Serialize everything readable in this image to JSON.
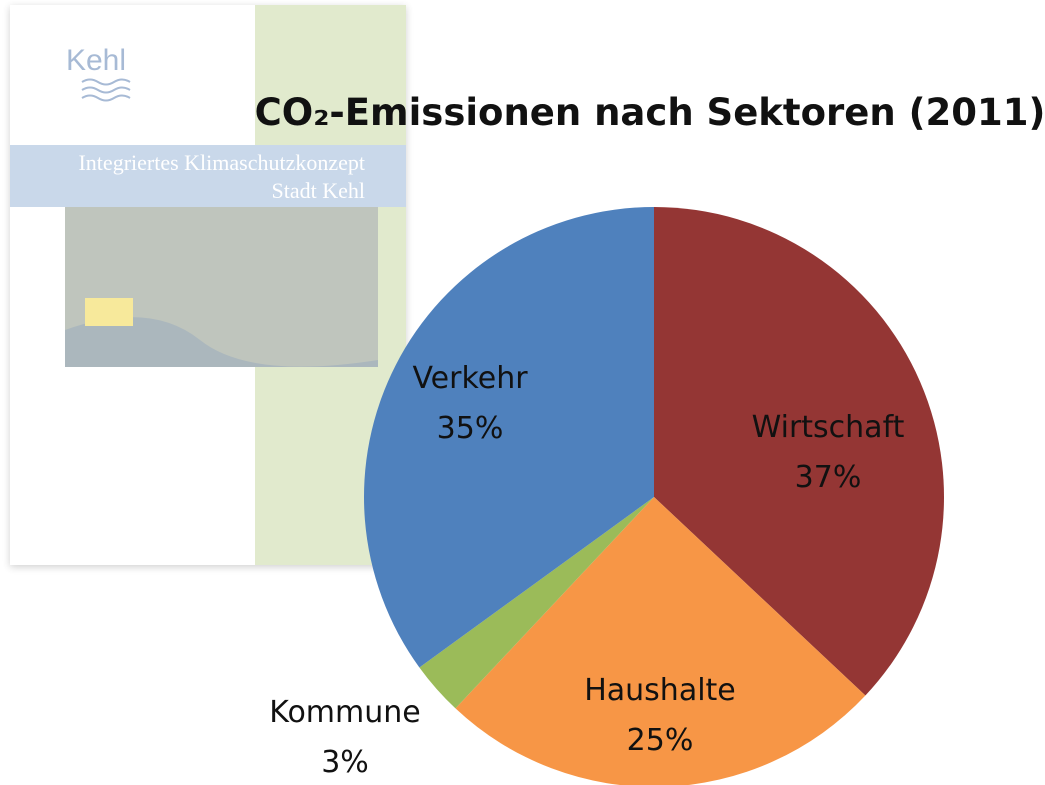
{
  "chart_data": {
    "type": "pie",
    "title": "CO₂-Emissionen nach Sektoren (2011)",
    "categories": [
      "Wirtschaft",
      "Haushalte",
      "Kommune",
      "Verkehr"
    ],
    "values": [
      37,
      25,
      3,
      35
    ],
    "value_labels": [
      "37%",
      "25%",
      "3%",
      "35%"
    ],
    "colors": [
      "#943634",
      "#f79646",
      "#9bbb59",
      "#4f81bd"
    ]
  },
  "cover": {
    "logo": "Kehl",
    "title_line1": "Integriertes Klimaschutzkonzept",
    "title_line2": "Stadt Kehl"
  }
}
